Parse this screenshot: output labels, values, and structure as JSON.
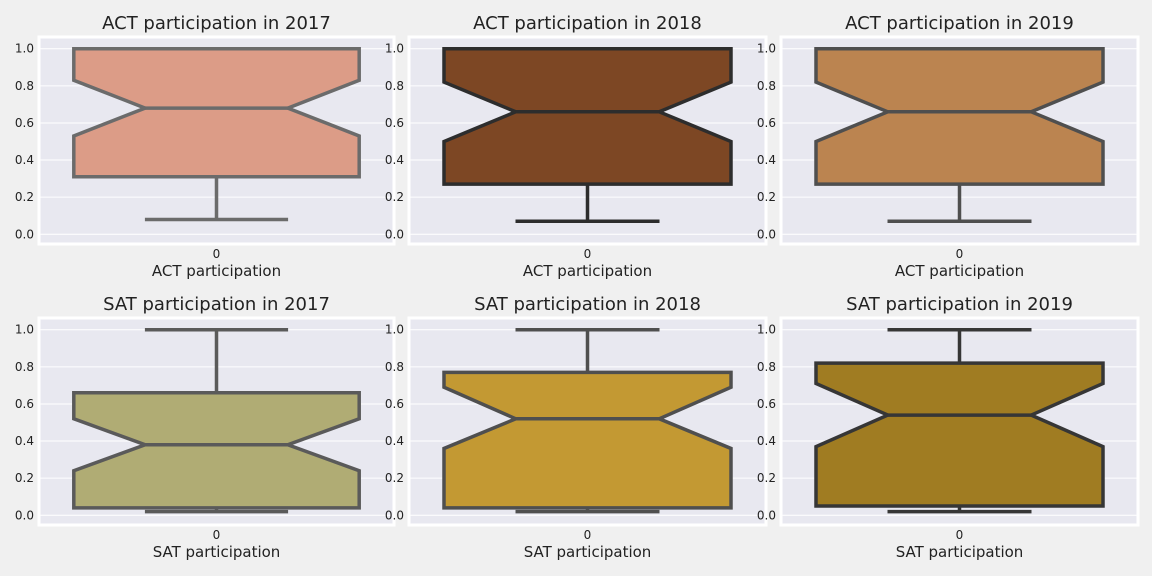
{
  "chart_data": [
    {
      "type": "box",
      "title": "ACT participation in 2017",
      "xlabel": "ACT participation",
      "categories": [
        "0"
      ],
      "ylim": [
        -0.02,
        1.02
      ],
      "yticks": [
        "0.0",
        "0.2",
        "0.4",
        "0.6",
        "0.8",
        "1.0"
      ],
      "notched": true,
      "grid": true,
      "fill": "#dc9c87",
      "edge": "#6b6b6b",
      "box": {
        "whisker_low": 0.08,
        "q1": 0.31,
        "median": 0.68,
        "q3": 1.0,
        "whisker_high": 1.0,
        "notch_low": 0.53,
        "notch_high": 0.83
      }
    },
    {
      "type": "box",
      "title": "ACT participation in 2018",
      "xlabel": "ACT participation",
      "categories": [
        "0"
      ],
      "ylim": [
        -0.02,
        1.02
      ],
      "yticks": [
        "0.0",
        "0.2",
        "0.4",
        "0.6",
        "0.8",
        "1.0"
      ],
      "notched": true,
      "grid": true,
      "fill": "#7d4724",
      "edge": "#2d2d2d",
      "box": {
        "whisker_low": 0.07,
        "q1": 0.27,
        "median": 0.66,
        "q3": 1.0,
        "whisker_high": 1.0,
        "notch_low": 0.5,
        "notch_high": 0.82
      }
    },
    {
      "type": "box",
      "title": "ACT participation in 2019",
      "xlabel": "ACT participation",
      "categories": [
        "0"
      ],
      "ylim": [
        -0.02,
        1.02
      ],
      "yticks": [
        "0.0",
        "0.2",
        "0.4",
        "0.6",
        "0.8",
        "1.0"
      ],
      "notched": true,
      "grid": true,
      "fill": "#bb8450",
      "edge": "#4f4f4f",
      "box": {
        "whisker_low": 0.07,
        "q1": 0.27,
        "median": 0.66,
        "q3": 1.0,
        "whisker_high": 1.0,
        "notch_low": 0.5,
        "notch_high": 0.82
      }
    },
    {
      "type": "box",
      "title": "SAT participation in 2017",
      "xlabel": "SAT participation",
      "categories": [
        "0"
      ],
      "ylim": [
        -0.02,
        1.02
      ],
      "yticks": [
        "0.0",
        "0.2",
        "0.4",
        "0.6",
        "0.8",
        "1.0"
      ],
      "notched": true,
      "grid": true,
      "fill": "#b0ac74",
      "edge": "#5a5a5a",
      "box": {
        "whisker_low": 0.02,
        "q1": 0.04,
        "median": 0.38,
        "q3": 0.66,
        "whisker_high": 1.0,
        "notch_low": 0.24,
        "notch_high": 0.52
      }
    },
    {
      "type": "box",
      "title": "SAT participation in 2018",
      "xlabel": "SAT participation",
      "categories": [
        "0"
      ],
      "ylim": [
        -0.02,
        1.02
      ],
      "yticks": [
        "0.0",
        "0.2",
        "0.4",
        "0.6",
        "0.8",
        "1.0"
      ],
      "notched": true,
      "grid": true,
      "fill": "#c39933",
      "edge": "#4f4f4f",
      "box": {
        "whisker_low": 0.02,
        "q1": 0.04,
        "median": 0.52,
        "q3": 0.77,
        "whisker_high": 1.0,
        "notch_low": 0.36,
        "notch_high": 0.69
      }
    },
    {
      "type": "box",
      "title": "SAT participation in 2019",
      "xlabel": "SAT participation",
      "categories": [
        "0"
      ],
      "ylim": [
        -0.02,
        1.02
      ],
      "yticks": [
        "0.0",
        "0.2",
        "0.4",
        "0.6",
        "0.8",
        "1.0"
      ],
      "notched": true,
      "grid": true,
      "fill": "#a07c22",
      "edge": "#363636",
      "box": {
        "whisker_low": 0.02,
        "q1": 0.05,
        "median": 0.54,
        "q3": 0.82,
        "whisker_high": 1.0,
        "notch_low": 0.37,
        "notch_high": 0.71
      }
    }
  ],
  "colors": {
    "figure_bg": "#f0f0f0",
    "axes_bg": "#e8e8f0",
    "grid": "#ffffff",
    "axes_frame": "#ffffff"
  }
}
